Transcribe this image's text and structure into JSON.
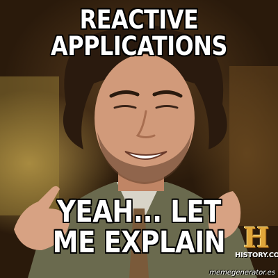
{
  "meme": {
    "top_text": "REACTIVE APPLICATIONS",
    "bottom_text_lines": [
      "YEAH... LET",
      "ME EXPLAIN"
    ]
  },
  "logo": {
    "symbol": "H",
    "label": "HISTORY.COM"
  },
  "watermark": "memegenerator.es",
  "colors": {
    "caption": "#ffffff",
    "caption_outline": "#000000",
    "logo_gold": "#e0a63a",
    "jacket": "#6a6a4e",
    "skin": "#d19a7a",
    "hair": "#2a1a0e"
  }
}
